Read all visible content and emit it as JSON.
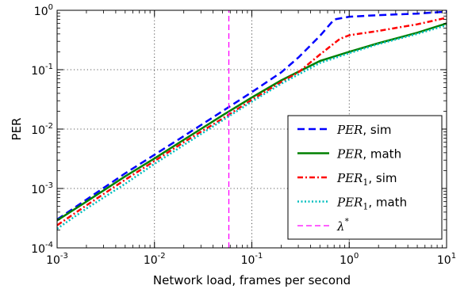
{
  "chart_data": {
    "type": "line",
    "title": "",
    "xlabel": "Network load, frames per second",
    "ylabel": "PER",
    "x_scale": "log",
    "y_scale": "log",
    "xlim": [
      0.001,
      10
    ],
    "ylim": [
      0.0001,
      1
    ],
    "grid": true,
    "legend_position": "bottom-right",
    "x_ticks": [
      {
        "base": "10",
        "exp": "-3"
      },
      {
        "base": "10",
        "exp": "-2"
      },
      {
        "base": "10",
        "exp": "-1"
      },
      {
        "base": "10",
        "exp": "0"
      },
      {
        "base": "10",
        "exp": "1"
      }
    ],
    "y_ticks": [
      {
        "base": "10",
        "exp": "-4"
      },
      {
        "base": "10",
        "exp": "-3"
      },
      {
        "base": "10",
        "exp": "-2"
      },
      {
        "base": "10",
        "exp": "-1"
      },
      {
        "base": "10",
        "exp": "0"
      }
    ],
    "series": [
      {
        "name": {
          "main": "PER",
          "sub": "",
          "sup": "",
          "suffix": ", sim"
        },
        "color": "#0000ff",
        "style": "dashed",
        "x": [
          0.001,
          0.002,
          0.005,
          0.01,
          0.02,
          0.05,
          0.1,
          0.2,
          0.3,
          0.5,
          0.7,
          1,
          2,
          5,
          10
        ],
        "y": [
          0.0003,
          0.00065,
          0.0018,
          0.0037,
          0.0076,
          0.02,
          0.042,
          0.09,
          0.16,
          0.37,
          0.7,
          0.78,
          0.83,
          0.88,
          0.95
        ]
      },
      {
        "name": {
          "main": "PER",
          "sub": "",
          "sup": "",
          "suffix": ", math"
        },
        "color": "#008000",
        "style": "solid",
        "x": [
          0.001,
          0.002,
          0.005,
          0.01,
          0.02,
          0.05,
          0.1,
          0.2,
          0.5,
          1,
          2,
          5,
          10
        ],
        "y": [
          0.00029,
          0.0006,
          0.0016,
          0.0032,
          0.0066,
          0.017,
          0.034,
          0.066,
          0.14,
          0.2,
          0.28,
          0.42,
          0.6
        ]
      },
      {
        "name": {
          "main": "PER",
          "sub": "1",
          "sup": "",
          "suffix": ", sim"
        },
        "color": "#ff0000",
        "style": "dashdot",
        "x": [
          0.001,
          0.002,
          0.005,
          0.01,
          0.02,
          0.05,
          0.1,
          0.2,
          0.3,
          0.5,
          0.8,
          1,
          2,
          5,
          10
        ],
        "y": [
          0.00024,
          0.00052,
          0.0014,
          0.0029,
          0.006,
          0.015,
          0.031,
          0.062,
          0.09,
          0.18,
          0.33,
          0.38,
          0.45,
          0.58,
          0.75
        ]
      },
      {
        "name": {
          "main": "PER",
          "sub": "1",
          "sup": "",
          "suffix": ", math"
        },
        "color": "#00bfbf",
        "style": "dotted",
        "x": [
          0.001,
          0.002,
          0.005,
          0.01,
          0.02,
          0.05,
          0.1,
          0.2,
          0.5,
          1,
          2,
          5,
          10
        ],
        "y": [
          0.00021,
          0.00046,
          0.0012,
          0.0026,
          0.0054,
          0.014,
          0.029,
          0.058,
          0.13,
          0.19,
          0.27,
          0.4,
          0.56
        ]
      },
      {
        "name": {
          "main": "λ",
          "sub": "",
          "sup": "*",
          "suffix": ""
        },
        "color": "#ff00ff",
        "style": "dashed-vertical",
        "x": [
          0.058,
          0.058
        ],
        "y": [
          0.0001,
          1
        ]
      }
    ]
  }
}
